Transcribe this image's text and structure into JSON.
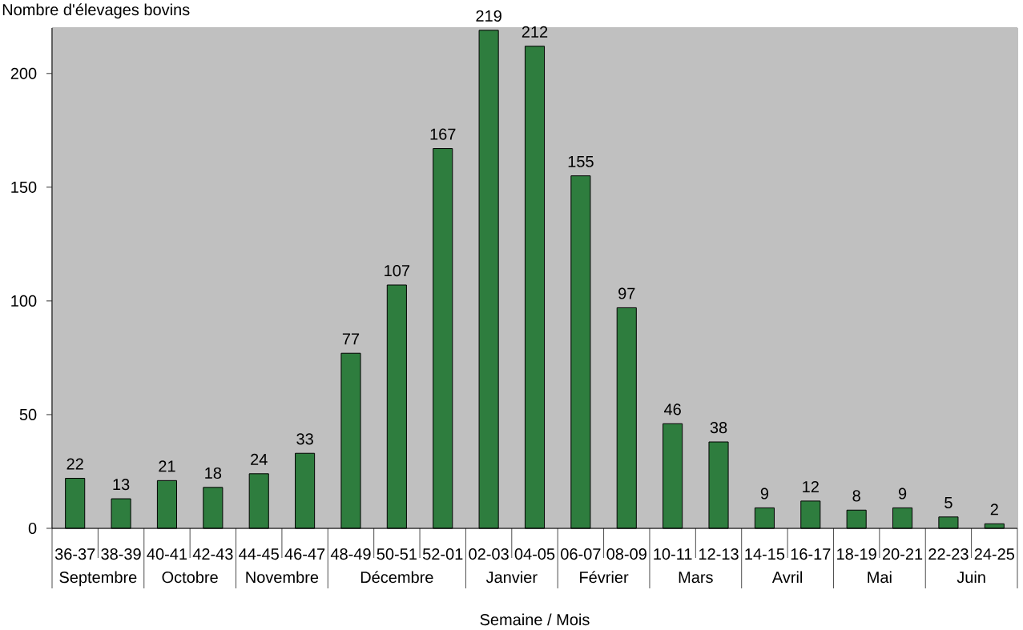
{
  "chart_data": {
    "type": "bar",
    "ylabel": "Nombre d'élevages bovins",
    "xlabel": "Semaine /  Mois",
    "categories": [
      "36-37",
      "38-39",
      "40-41",
      "42-43",
      "44-45",
      "46-47",
      "48-49",
      "50-51",
      "52-01",
      "02-03",
      "04-05",
      "06-07",
      "08-09",
      "10-11",
      "12-13",
      "14-15",
      "16-17",
      "18-19",
      "20-21",
      "22-23",
      "24-25"
    ],
    "values": [
      22,
      13,
      21,
      18,
      24,
      33,
      77,
      107,
      167,
      219,
      212,
      155,
      97,
      46,
      38,
      9,
      12,
      8,
      9,
      5,
      2
    ],
    "color": "#2e7d3e",
    "ylim": [
      0,
      220
    ],
    "yticks": [
      0,
      50,
      100,
      150,
      200
    ],
    "data_labels": true,
    "annotations": [
      "Septembre",
      "Octobre",
      "Novembre",
      "Décembre",
      "Janvier",
      "Février",
      "Mars",
      "Avril",
      "Mai",
      "Juin"
    ]
  }
}
